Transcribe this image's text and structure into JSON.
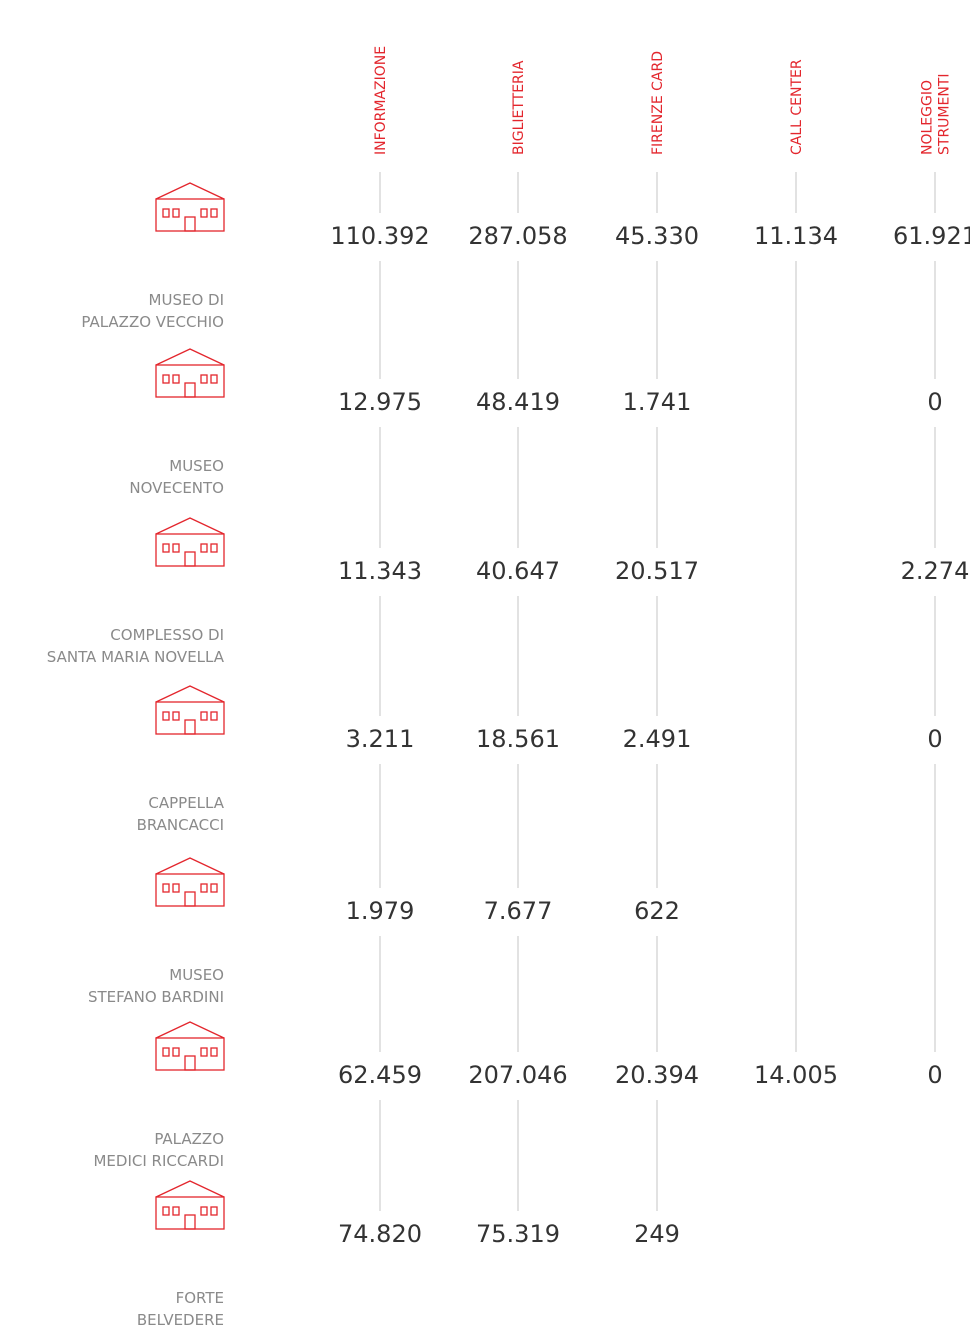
{
  "table": {
    "columns": [
      [
        "INFORMAZIONE"
      ],
      [
        "BIGLIETTERIA"
      ],
      [
        "FIRENZE CARD"
      ],
      [
        "CALL CENTER"
      ],
      [
        "NOLEGGIO",
        "STRUMENTI"
      ]
    ],
    "rows": [
      {
        "name": [
          "MUSEO DI",
          "PALAZZO VECCHIO"
        ],
        "cells": [
          "110.392",
          "287.058",
          "45.330",
          "11.134",
          "61.921"
        ]
      },
      {
        "name": [
          "MUSEO",
          "NOVECENTO"
        ],
        "cells": [
          "12.975",
          "48.419",
          "1.741",
          null,
          "0"
        ]
      },
      {
        "name": [
          "COMPLESSO DI",
          "SANTA MARIA NOVELLA"
        ],
        "cells": [
          "11.343",
          "40.647",
          "20.517",
          null,
          "2.274"
        ]
      },
      {
        "name": [
          "CAPPELLA",
          "BRANCACCI"
        ],
        "cells": [
          "3.211",
          "18.561",
          "2.491",
          null,
          "0"
        ]
      },
      {
        "name": [
          "MUSEO",
          "STEFANO BARDINI"
        ],
        "cells": [
          "1.979",
          "7.677",
          "622",
          null,
          null
        ]
      },
      {
        "name": [
          "PALAZZO",
          "MEDICI RICCARDI"
        ],
        "cells": [
          "62.459",
          "207.046",
          "20.394",
          "14.005",
          "0"
        ]
      },
      {
        "name": [
          "FORTE",
          "BELVEDERE"
        ],
        "cells": [
          "74.820",
          "75.319",
          "249",
          null,
          null
        ]
      }
    ]
  }
}
